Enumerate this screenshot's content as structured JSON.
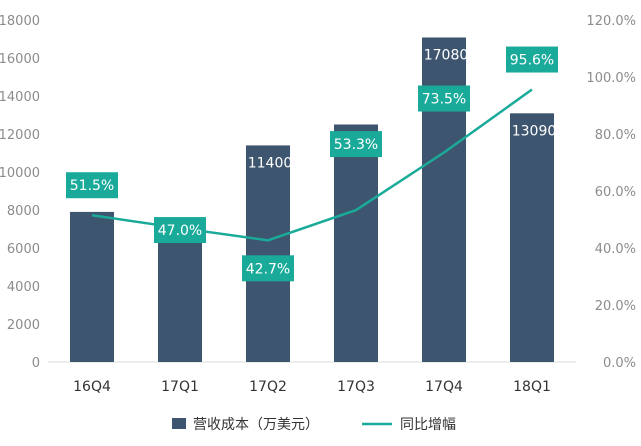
{
  "chart_data": {
    "type": "bar",
    "categories": [
      "16Q4",
      "17Q1",
      "17Q2",
      "17Q3",
      "17Q4",
      "18Q1"
    ],
    "series": [
      {
        "name": "营收成本（万美元）",
        "type": "bar",
        "axis": "left",
        "values": [
          7900,
          7540,
          11400,
          12500,
          17080,
          13090
        ],
        "labels": [
          "",
          "7540",
          "11400",
          "12500",
          "17080",
          "13090"
        ]
      },
      {
        "name": "同比增幅",
        "type": "line",
        "axis": "right",
        "values": [
          51.5,
          47.0,
          42.7,
          53.3,
          73.5,
          95.6
        ],
        "labels": [
          "51.5%",
          "47.0%",
          "42.7%",
          "53.3%",
          "73.5%",
          "95.6%"
        ]
      }
    ],
    "y_left": {
      "lim": [
        0,
        18000
      ],
      "ticks": [
        "0",
        "2000",
        "4000",
        "6000",
        "8000",
        "10000",
        "12000",
        "14000",
        "16000",
        "18000"
      ]
    },
    "y_right": {
      "lim": [
        0,
        120
      ],
      "ticks": [
        "0.0%",
        "20.0%",
        "40.0%",
        "60.0%",
        "80.0%",
        "100.0%",
        "120.0%"
      ]
    },
    "legend_position": "bottom",
    "grid": false,
    "colors": {
      "bar": "#3e5570",
      "line": "#1aaa9a",
      "label_box": "#1aaa9a"
    }
  }
}
